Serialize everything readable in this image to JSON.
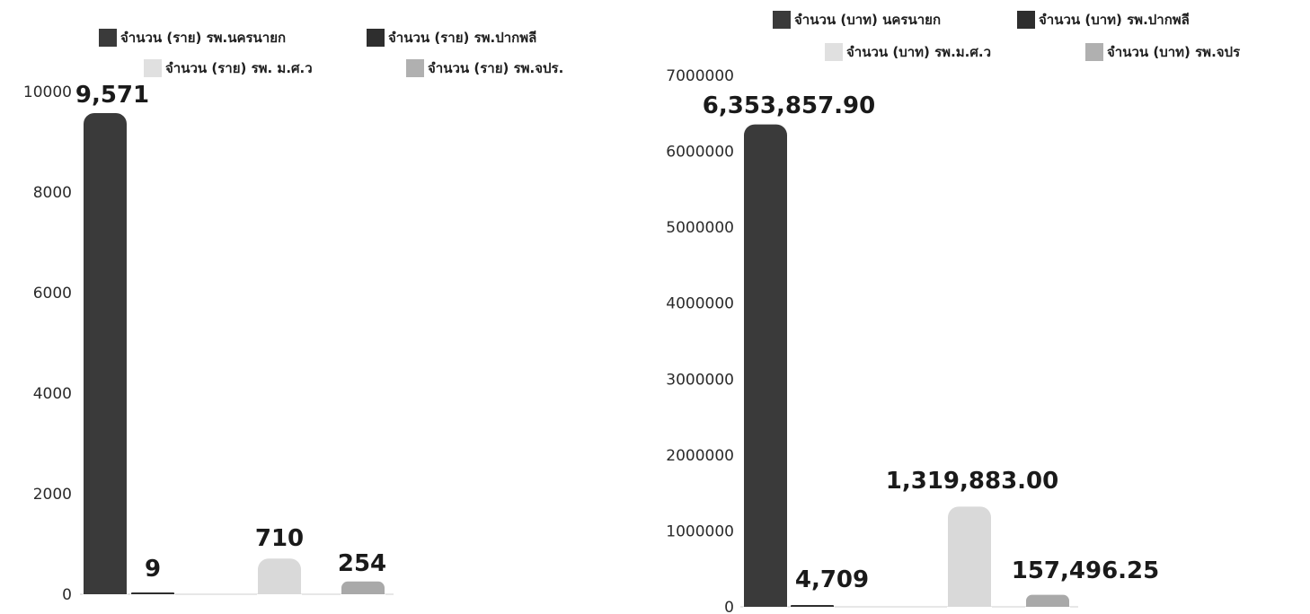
{
  "chart_data": [
    {
      "type": "bar",
      "title": "",
      "xlabel": "",
      "ylabel": "",
      "ylim": [
        0,
        10000
      ],
      "yticks": [
        "0",
        "2000",
        "4000",
        "6000",
        "8000",
        "10000"
      ],
      "legend_placement": "top",
      "grid": false,
      "series": [
        {
          "name": "จำนวน (ราย) รพ.นครนายก",
          "color": "#3a3a3a",
          "value": 9571,
          "label": "9,571"
        },
        {
          "name": "จำนวน (ราย) รพ.ปากพลี",
          "color": "#2e2e2e",
          "value": 9,
          "label": "9"
        },
        {
          "name": "จำนวน (ราย) รพ. ม.ศ.ว",
          "color": "#d9d9d9",
          "value": 710,
          "label": "710"
        },
        {
          "name": "จำนวน (ราย) รพ.จปร.",
          "color": "#a9a9a9",
          "value": 254,
          "label": "254"
        }
      ]
    },
    {
      "type": "bar",
      "title": "",
      "xlabel": "",
      "ylabel": "",
      "ylim": [
        0,
        7000000
      ],
      "yticks": [
        "0",
        "1000000",
        "2000000",
        "3000000",
        "4000000",
        "5000000",
        "6000000",
        "7000000"
      ],
      "legend_placement": "top",
      "grid": false,
      "series": [
        {
          "name": "จำนวน (บาท) นครนายก",
          "color": "#3a3a3a",
          "value": 6353857.9,
          "label": "6,353,857.90"
        },
        {
          "name": "จำนวน (บาท) รพ.ปากพลี",
          "color": "#2e2e2e",
          "value": 4709,
          "label": "4,709"
        },
        {
          "name": "จำนวน (บาท) รพ.ม.ศ.ว",
          "color": "#d9d9d9",
          "value": 1319883.0,
          "label": "1,319,883.00"
        },
        {
          "name": "จำนวน (บาท) รพ.จปร",
          "color": "#a9a9a9",
          "value": 157496.25,
          "label": "157,496.25"
        }
      ]
    }
  ]
}
